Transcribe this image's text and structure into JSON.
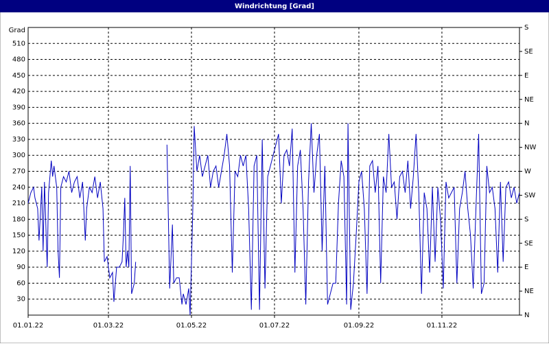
{
  "chart_data": {
    "type": "line",
    "title": "Windrichtung [Grad]",
    "y_label": "Grad",
    "x": [
      0,
      2,
      4,
      5,
      7,
      8,
      10,
      11,
      12,
      14,
      15,
      17,
      18,
      19,
      21,
      22,
      23,
      24,
      26,
      28,
      30,
      32,
      34,
      36,
      38,
      40,
      42,
      43,
      45,
      47,
      49,
      51,
      53,
      55,
      56,
      58,
      60,
      62,
      63,
      65,
      67,
      69,
      70,
      71,
      72,
      73,
      74,
      75,
      76,
      78,
      79,
      90,
      102,
      104,
      106,
      107,
      109,
      111,
      113,
      114,
      116,
      118,
      119,
      121,
      122,
      124,
      126,
      128,
      130,
      132,
      134,
      136,
      138,
      140,
      142,
      144,
      146,
      148,
      150,
      152,
      154,
      156,
      158,
      160,
      162,
      164,
      166,
      168,
      170,
      172,
      174,
      176,
      178,
      180,
      182,
      184,
      186,
      188,
      190,
      192,
      194,
      196,
      198,
      200,
      202,
      204,
      206,
      208,
      210,
      212,
      214,
      216,
      218,
      220,
      222,
      224,
      226,
      228,
      230,
      232,
      234,
      235,
      237,
      239,
      241,
      243,
      245,
      247,
      249,
      251,
      253,
      255,
      257,
      259,
      261,
      263,
      265,
      267,
      269,
      271,
      273,
      275,
      277,
      279,
      281,
      283,
      285,
      287,
      289,
      291,
      293,
      295,
      297,
      299,
      301,
      303,
      305,
      307,
      309,
      311,
      313,
      315,
      317,
      319,
      321,
      323,
      325,
      327,
      329,
      331,
      333,
      335,
      337,
      339,
      341,
      343,
      345,
      347,
      349,
      351,
      353,
      355,
      357,
      359,
      361
    ],
    "series": [
      {
        "name": "Windrichtung",
        "color": "#0000c0",
        "values": [
          210,
          230,
          240,
          220,
          200,
          140,
          240,
          120,
          250,
          90,
          230,
          290,
          260,
          280,
          240,
          120,
          70,
          240,
          260,
          250,
          270,
          230,
          250,
          260,
          220,
          250,
          140,
          200,
          240,
          230,
          260,
          220,
          250,
          200,
          100,
          110,
          70,
          80,
          25,
          90,
          90,
          100,
          150,
          220,
          90,
          120,
          90,
          280,
          40,
          60,
          100,
          null,
          320,
          50,
          170,
          60,
          70,
          70,
          20,
          40,
          20,
          50,
          0,
          200,
          355,
          270,
          300,
          260,
          280,
          300,
          240,
          270,
          280,
          240,
          270,
          300,
          340,
          280,
          80,
          270,
          260,
          300,
          280,
          300,
          200,
          10,
          280,
          300,
          10,
          330,
          50,
          260,
          280,
          300,
          320,
          340,
          210,
          300,
          310,
          280,
          350,
          80,
          280,
          310,
          200,
          20,
          250,
          360,
          230,
          300,
          340,
          120,
          280,
          20,
          40,
          60,
          60,
          210,
          290,
          260,
          20,
          360,
          10,
          60,
          150,
          250,
          270,
          200,
          40,
          280,
          290,
          230,
          280,
          60,
          260,
          230,
          340,
          240,
          250,
          180,
          260,
          270,
          230,
          290,
          200,
          260,
          340,
          230,
          40,
          230,
          200,
          80,
          240,
          100,
          240,
          180,
          50,
          250,
          220,
          230,
          240,
          60,
          200,
          230,
          270,
          200,
          150,
          50,
          200,
          340,
          40,
          60,
          280,
          230,
          240,
          200,
          80,
          250,
          100,
          240,
          250,
          220,
          240,
          210,
          230
        ]
      }
    ],
    "xlim": [
      0,
      361
    ],
    "xticks": [
      {
        "value": 0,
        "label": "01.01.22"
      },
      {
        "value": 59,
        "label": "01.03.22"
      },
      {
        "value": 120,
        "label": "01.05.22"
      },
      {
        "value": 181,
        "label": "01.07.22"
      },
      {
        "value": 243,
        "label": "01.09.22"
      },
      {
        "value": 304,
        "label": "01.11.22"
      }
    ],
    "ylim": [
      0,
      540
    ],
    "yticks": [
      30,
      60,
      90,
      120,
      150,
      180,
      210,
      240,
      270,
      300,
      330,
      360,
      390,
      420,
      450,
      480,
      510
    ],
    "y2lim": [
      0,
      540
    ],
    "y2ticks": [
      {
        "value": 0,
        "label": "N"
      },
      {
        "value": 45,
        "label": "NE"
      },
      {
        "value": 90,
        "label": "E"
      },
      {
        "value": 135,
        "label": "SE"
      },
      {
        "value": 180,
        "label": "S"
      },
      {
        "value": 225,
        "label": "SW"
      },
      {
        "value": 270,
        "label": "W"
      },
      {
        "value": 315,
        "label": "NW"
      },
      {
        "value": 360,
        "label": "N"
      },
      {
        "value": 405,
        "label": "NE"
      },
      {
        "value": 450,
        "label": "E"
      },
      {
        "value": 495,
        "label": "SE"
      },
      {
        "value": 540,
        "label": "S"
      }
    ],
    "grid": true
  }
}
